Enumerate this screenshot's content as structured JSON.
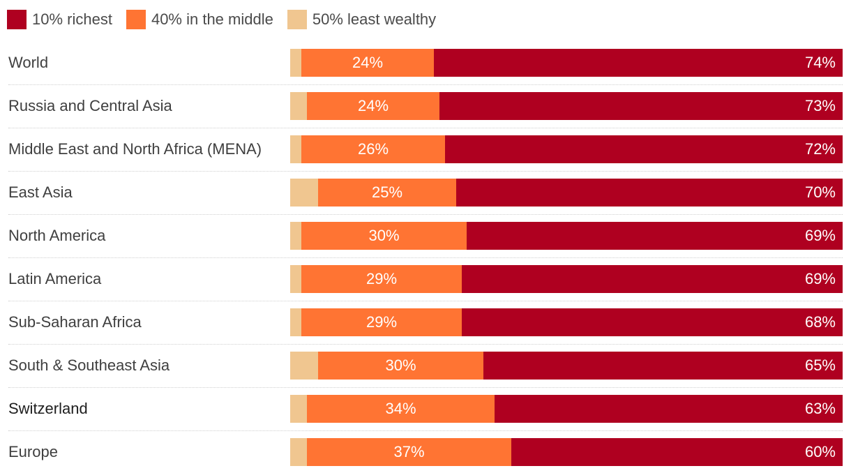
{
  "colors": {
    "richest": "#af0020",
    "middle": "#ff7433",
    "least": "#f0c690"
  },
  "legend": [
    {
      "label": "10% richest",
      "color_key": "richest"
    },
    {
      "label": "40% in the middle",
      "color_key": "middle"
    },
    {
      "label": "50% least wealthy",
      "color_key": "least"
    }
  ],
  "chart_data": {
    "type": "bar",
    "orientation": "horizontal",
    "stacked": true,
    "title": "",
    "xlabel": "",
    "ylabel": "",
    "xlim": [
      0,
      100
    ],
    "categories": [
      "World",
      "Russia and Central Asia",
      "Middle East and North Africa (MENA)",
      "East Asia",
      "North America",
      "Latin America",
      "Sub-Saharan Africa",
      "South & Southeast Asia",
      "Switzerland",
      "Europe"
    ],
    "highlight_category": "Switzerland",
    "series": [
      {
        "name": "50% least wealthy",
        "key": "least",
        "values": [
          2,
          3,
          2,
          5,
          2,
          2,
          2,
          5,
          3,
          3
        ],
        "labeled": false
      },
      {
        "name": "40% in the middle",
        "key": "middle",
        "values": [
          24,
          24,
          26,
          25,
          30,
          29,
          29,
          30,
          34,
          37
        ],
        "labeled": true,
        "label_align": "center"
      },
      {
        "name": "10% richest",
        "key": "richest",
        "values": [
          74,
          73,
          72,
          70,
          69,
          69,
          68,
          65,
          63,
          60
        ],
        "labeled": true,
        "label_align": "right"
      }
    ]
  }
}
